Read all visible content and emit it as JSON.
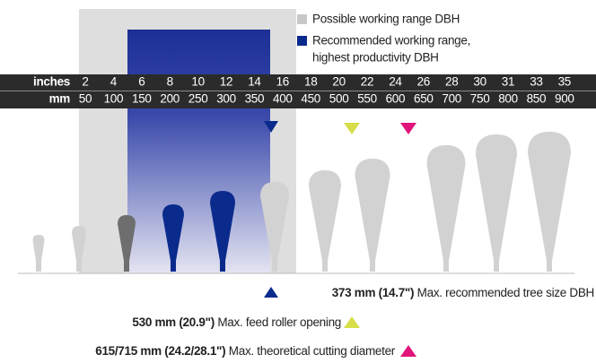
{
  "legend": {
    "items": [
      {
        "label": "Possible working range DBH"
      },
      {
        "label": "Recommended working range,",
        "label_line2": "highest productivity DBH"
      }
    ]
  },
  "scale": {
    "inches_label": "inches",
    "mm_label": "mm",
    "inches": [
      2,
      4,
      6,
      8,
      10,
      12,
      14,
      16,
      18,
      20,
      22,
      24,
      26,
      28,
      30,
      31,
      33,
      35
    ],
    "mm": [
      50,
      100,
      150,
      200,
      250,
      300,
      350,
      400,
      450,
      500,
      550,
      600,
      650,
      700,
      750,
      800,
      850,
      900
    ]
  },
  "notes": [
    {
      "value": "373 mm (14.7\")",
      "text": " Max. recommended tree size DBH"
    },
    {
      "value": "530 mm (20.9\")",
      "text": " Max. feed roller opening"
    },
    {
      "value": "615/715 mm (24.2/28.1\")",
      "text": " Max. theoretical cutting diameter"
    }
  ]
}
